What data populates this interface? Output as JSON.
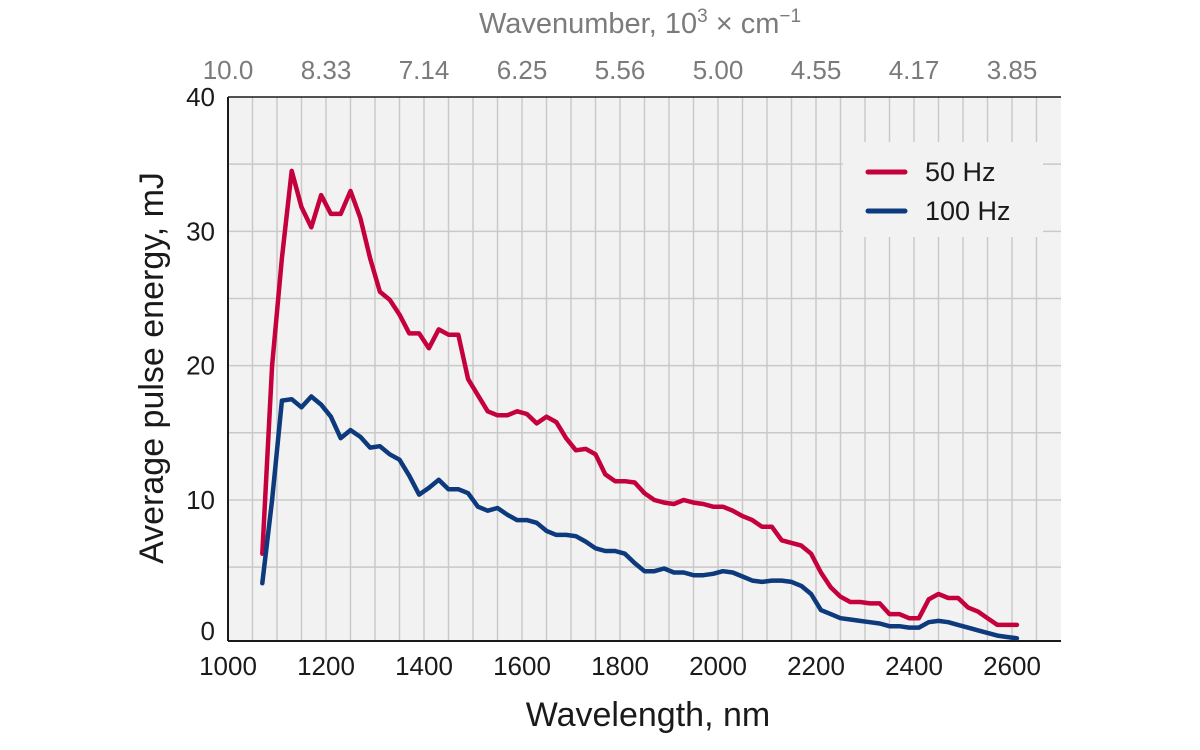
{
  "chart_data": {
    "type": "line",
    "xlabel": "Wavelength, nm",
    "ylabel": "Average pulse energy, mJ",
    "top_axis": {
      "label_prefix": "Wavenumber, 10",
      "label_sup": "3",
      "label_mid": " × cm",
      "label_sup2": "−1",
      "tick_labels": [
        "10.0",
        "8.33",
        "7.14",
        "6.25",
        "5.56",
        "5.00",
        "4.55",
        "4.17",
        "3.85"
      ],
      "tick_positions_nm": [
        1000,
        1200,
        1400,
        1600,
        1800,
        2000,
        2200,
        2400,
        2600
      ]
    },
    "xlim": [
      1000,
      2700
    ],
    "ylim": [
      -0.5,
      40
    ],
    "x_ticks": [
      1000,
      1200,
      1400,
      1600,
      1800,
      2000,
      2200,
      2400,
      2600
    ],
    "y_ticks": [
      0,
      10,
      20,
      30,
      40
    ],
    "grid": true,
    "legend_position": "top-right",
    "colors": {
      "background": "#f2f2f2",
      "grid": "#c9c9c9",
      "axis": "#1a1a1a"
    },
    "series": [
      {
        "name": "50 Hz",
        "color": "#c4003d",
        "x": [
          1070,
          1090,
          1110,
          1130,
          1150,
          1170,
          1190,
          1210,
          1230,
          1250,
          1270,
          1290,
          1310,
          1330,
          1350,
          1370,
          1390,
          1410,
          1430,
          1450,
          1470,
          1490,
          1510,
          1530,
          1550,
          1570,
          1590,
          1610,
          1630,
          1650,
          1670,
          1690,
          1710,
          1730,
          1750,
          1770,
          1790,
          1810,
          1830,
          1850,
          1870,
          1890,
          1910,
          1930,
          1950,
          1970,
          1990,
          2010,
          2030,
          2050,
          2070,
          2090,
          2110,
          2130,
          2150,
          2170,
          2190,
          2210,
          2230,
          2250,
          2270,
          2290,
          2310,
          2330,
          2350,
          2370,
          2390,
          2410,
          2430,
          2450,
          2470,
          2490,
          2510,
          2530,
          2550,
          2570,
          2590,
          2610
        ],
        "values": [
          6.0,
          20.0,
          28.0,
          34.5,
          31.8,
          30.3,
          32.7,
          31.3,
          31.3,
          33.0,
          31.0,
          28.0,
          25.5,
          24.9,
          23.8,
          22.4,
          22.4,
          21.3,
          22.7,
          22.3,
          22.3,
          19.0,
          17.8,
          16.6,
          16.3,
          16.3,
          16.6,
          16.4,
          15.7,
          16.2,
          15.8,
          14.6,
          13.7,
          13.8,
          13.4,
          11.9,
          11.4,
          11.4,
          11.3,
          10.5,
          10.0,
          9.8,
          9.7,
          10.0,
          9.8,
          9.7,
          9.5,
          9.5,
          9.2,
          8.8,
          8.5,
          8.0,
          8.0,
          7.0,
          6.8,
          6.6,
          6.0,
          4.6,
          3.5,
          2.8,
          2.4,
          2.4,
          2.3,
          2.3,
          1.5,
          1.5,
          1.2,
          1.2,
          2.6,
          3.0,
          2.7,
          2.7,
          2.0,
          1.7,
          1.2,
          0.7,
          0.7,
          0.7
        ]
      },
      {
        "name": "100 Hz",
        "color": "#0c3a7c",
        "x": [
          1070,
          1090,
          1110,
          1130,
          1150,
          1170,
          1190,
          1210,
          1230,
          1250,
          1270,
          1290,
          1310,
          1330,
          1350,
          1370,
          1390,
          1410,
          1430,
          1450,
          1470,
          1490,
          1510,
          1530,
          1550,
          1570,
          1590,
          1610,
          1630,
          1650,
          1670,
          1690,
          1710,
          1730,
          1750,
          1770,
          1790,
          1810,
          1830,
          1850,
          1870,
          1890,
          1910,
          1930,
          1950,
          1970,
          1990,
          2010,
          2030,
          2050,
          2070,
          2090,
          2110,
          2130,
          2150,
          2170,
          2190,
          2210,
          2230,
          2250,
          2270,
          2290,
          2310,
          2330,
          2350,
          2370,
          2390,
          2410,
          2430,
          2450,
          2470,
          2490,
          2510,
          2530,
          2550,
          2570,
          2590,
          2610
        ],
        "values": [
          3.8,
          10.0,
          17.4,
          17.5,
          16.9,
          17.7,
          17.1,
          16.2,
          14.6,
          15.2,
          14.7,
          13.9,
          14.0,
          13.4,
          13.0,
          11.8,
          10.4,
          10.9,
          11.5,
          10.8,
          10.8,
          10.5,
          9.5,
          9.2,
          9.4,
          8.9,
          8.5,
          8.5,
          8.3,
          7.7,
          7.4,
          7.4,
          7.3,
          6.9,
          6.4,
          6.2,
          6.2,
          6.0,
          5.3,
          4.7,
          4.7,
          4.9,
          4.6,
          4.6,
          4.4,
          4.4,
          4.5,
          4.7,
          4.6,
          4.3,
          4.0,
          3.9,
          4.0,
          4.0,
          3.9,
          3.6,
          3.0,
          1.8,
          1.5,
          1.2,
          1.1,
          1.0,
          0.9,
          0.8,
          0.6,
          0.6,
          0.5,
          0.5,
          0.9,
          1.0,
          0.9,
          0.7,
          0.5,
          0.3,
          0.1,
          -0.1,
          -0.2,
          -0.3
        ]
      }
    ]
  }
}
